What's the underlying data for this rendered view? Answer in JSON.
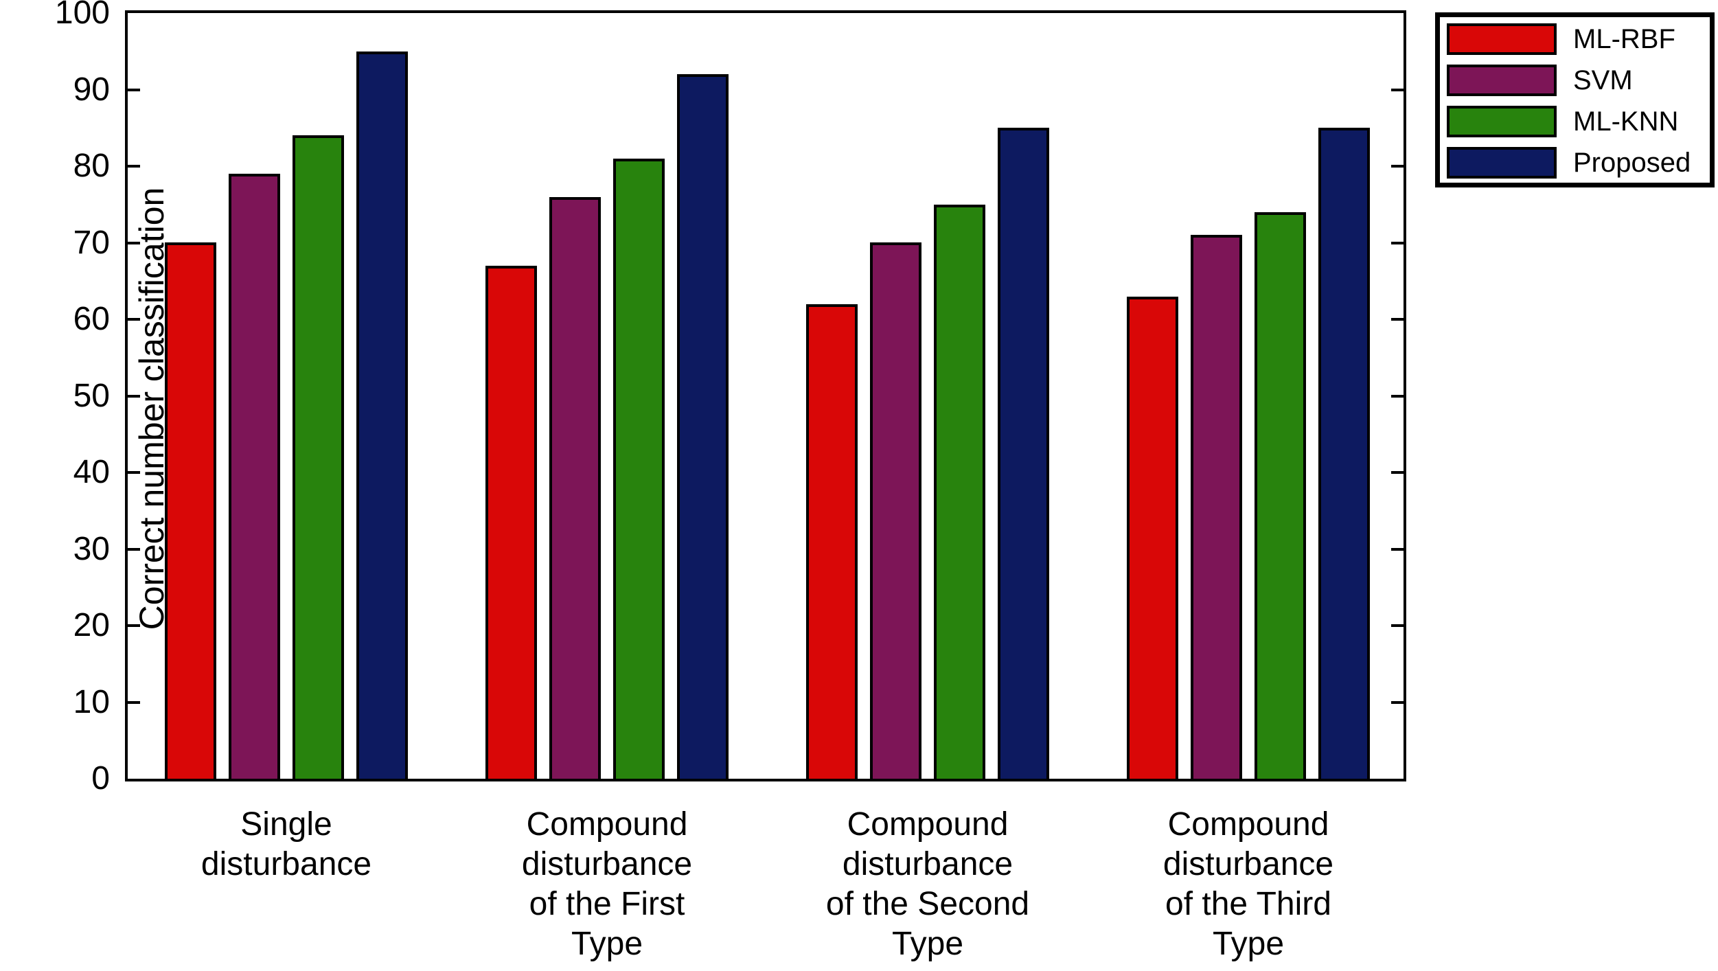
{
  "chart_data": {
    "type": "bar",
    "title": "",
    "xlabel": "",
    "ylabel": "Correct number classification",
    "ylim": [
      0,
      100
    ],
    "yticks": [
      0,
      10,
      20,
      30,
      40,
      50,
      60,
      70,
      80,
      90,
      100
    ],
    "grid": false,
    "background_color": "#ffffff",
    "axis_color": "#000000",
    "categories": [
      "Single disturbance",
      "Compound disturbance of the First Type",
      "Compound disturbance of the Second Type",
      "Compound disturbance of the Third Type"
    ],
    "category_label_lines": [
      [
        "Single",
        "disturbance"
      ],
      [
        "Compound",
        "disturbance",
        "of the First",
        "Type"
      ],
      [
        "Compound",
        "disturbance",
        "of the Second",
        "Type"
      ],
      [
        "Compound",
        "disturbance",
        "of the Third",
        "Type"
      ]
    ],
    "series": [
      {
        "name": "ML-RBF",
        "color": "#d90707",
        "values": [
          70,
          67,
          62,
          63
        ]
      },
      {
        "name": "SVM",
        "color": "#7d1557",
        "values": [
          79,
          76,
          70,
          71
        ]
      },
      {
        "name": "ML-KNN",
        "color": "#28830d",
        "values": [
          84,
          81,
          75,
          74
        ]
      },
      {
        "name": "Proposed",
        "color": "#0d1a60",
        "values": [
          95,
          92,
          85,
          85
        ]
      }
    ],
    "legend": {
      "position": "top-right-outside",
      "entries": [
        "ML-RBF",
        "SVM",
        "ML-KNN",
        "Proposed"
      ]
    }
  }
}
